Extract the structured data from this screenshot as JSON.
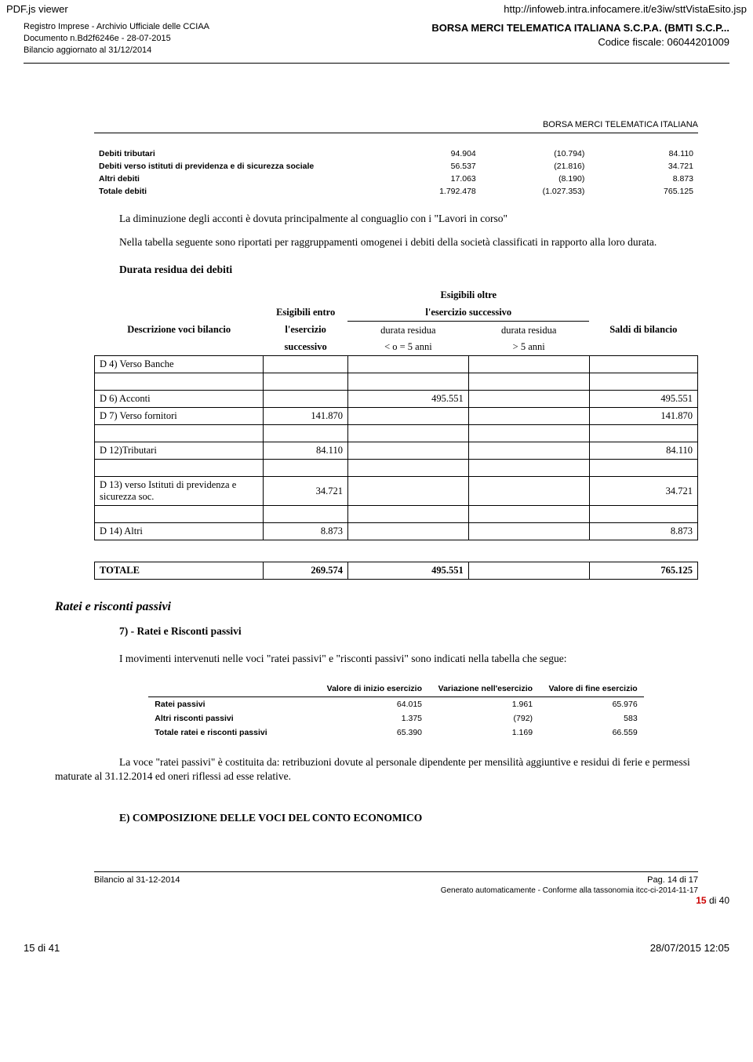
{
  "browser": {
    "title": "PDF.js viewer",
    "url": "http://infoweb.intra.infocamere.it/e3iw/sttVistaEsito.jsp"
  },
  "header": {
    "left_line1": "Registro Imprese - Archivio Ufficiale delle CCIAA",
    "left_line2": "Documento n.Bd2f6246e - 28-07-2015",
    "left_line3": "Bilancio aggiornato al 31/12/2014",
    "company": "BORSA MERCI TELEMATICA ITALIANA S.C.P.A. (BMTI S.C.P...",
    "fiscal": "Codice fiscale: 06044201009"
  },
  "section_top": "BORSA MERCI TELEMATICA ITALIANA",
  "debiti": {
    "rows": [
      {
        "label": "Debiti tributari",
        "c1": "94.904",
        "c2": "(10.794)",
        "c3": "84.110"
      },
      {
        "label": "Debiti verso istituti di previdenza e di sicurezza sociale",
        "c1": "56.537",
        "c2": "(21.816)",
        "c3": "34.721"
      },
      {
        "label": "Altri debiti",
        "c1": "17.063",
        "c2": "(8.190)",
        "c3": "8.873"
      },
      {
        "label": "Totale debiti",
        "c1": "1.792.478",
        "c2": "(1.027.353)",
        "c3": "765.125"
      }
    ]
  },
  "p1": "La diminuzione degli acconti è dovuta principalmente al conguaglio con i \"Lavori in corso\"",
  "p2": "Nella tabella seguente sono riportati per raggruppamenti omogenei i debiti della società classificati in rapporto alla loro durata.",
  "subhead1": "Durata residua dei debiti",
  "durata": {
    "header": {
      "top_span": "Esigibili oltre",
      "top_span2": "l'esercizio successivo",
      "col_desc": "Descrizione voci bilancio",
      "col_e1a": "Esigibili entro",
      "col_e1b": "l'esercizio",
      "col_e1c": "successivo",
      "col_e2a": "durata residua",
      "col_e2b": "< o = 5 anni",
      "col_e3a": "durata residua",
      "col_e3b": "> 5 anni",
      "col_saldi": "Saldi di bilancio"
    },
    "rows": [
      {
        "desc": "D 4) Verso Banche",
        "e1": "",
        "e2": "",
        "e3": "",
        "saldi": ""
      },
      {
        "desc": "",
        "e1": "",
        "e2": "",
        "e3": "",
        "saldi": "",
        "spacer": true
      },
      {
        "desc": "D 6) Acconti",
        "e1": "",
        "e2": "495.551",
        "e3": "",
        "saldi": "495.551"
      },
      {
        "desc": "D 7) Verso fornitori",
        "e1": "141.870",
        "e2": "",
        "e3": "",
        "saldi": "141.870"
      },
      {
        "desc": "",
        "e1": "",
        "e2": "",
        "e3": "",
        "saldi": "",
        "spacer": true
      },
      {
        "desc": "D 12)Tributari",
        "e1": "84.110",
        "e2": "",
        "e3": "",
        "saldi": "84.110"
      },
      {
        "desc": "",
        "e1": "",
        "e2": "",
        "e3": "",
        "saldi": "",
        "spacer": true
      },
      {
        "desc": "D 13) verso Istituti di previdenza e sicurezza soc.",
        "e1": "34.721",
        "e2": "",
        "e3": "",
        "saldi": "34.721"
      },
      {
        "desc": "",
        "e1": "",
        "e2": "",
        "e3": "",
        "saldi": "",
        "spacer": true
      },
      {
        "desc": "D 14) Altri",
        "e1": "8.873",
        "e2": "",
        "e3": "",
        "saldi": "8.873"
      }
    ],
    "total": {
      "desc": "TOTALE",
      "e1": "269.574",
      "e2": "495.551",
      "e3": "",
      "saldi": "765.125"
    }
  },
  "ratei_title": "Ratei e risconti passivi",
  "ratei_sub": "7) - Ratei e Risconti passivi",
  "ratei_p": "I movimenti intervenuti nelle voci \"ratei passivi\" e \"risconti passivi\" sono indicati nella tabella che segue:",
  "ratei": {
    "h1": "Valore di inizio esercizio",
    "h2": "Variazione nell'esercizio",
    "h3": "Valore di fine esercizio",
    "rows": [
      {
        "label": "Ratei passivi",
        "c1": "64.015",
        "c2": "1.961",
        "c3": "65.976"
      },
      {
        "label": "Altri risconti passivi",
        "c1": "1.375",
        "c2": "(792)",
        "c3": "583"
      },
      {
        "label": "Totale ratei e risconti passivi",
        "c1": "65.390",
        "c2": "1.169",
        "c3": "66.559"
      }
    ]
  },
  "p_ratei2": "La voce \"ratei passivi\" è costituita da: retribuzioni dovute al personale dipendente per mensilità aggiuntive e residui di ferie e permessi maturate al 31.12.2014 ed oneri riflessi ad esse relative.",
  "section_e": "E) COMPOSIZIONE DELLE VOCI DEL CONTO ECONOMICO",
  "footer": {
    "left": "Bilancio al 31-12-2014",
    "right": "Pag. 14 di 17",
    "line2": "Generato automaticamente - Conforme alla tassonomia itcc-ci-2014-11-17"
  },
  "page_counter": {
    "cur": "15",
    "of": "di",
    "tot": "40"
  },
  "bottom": {
    "left": "15 di 41",
    "right": "28/07/2015 12:05"
  }
}
